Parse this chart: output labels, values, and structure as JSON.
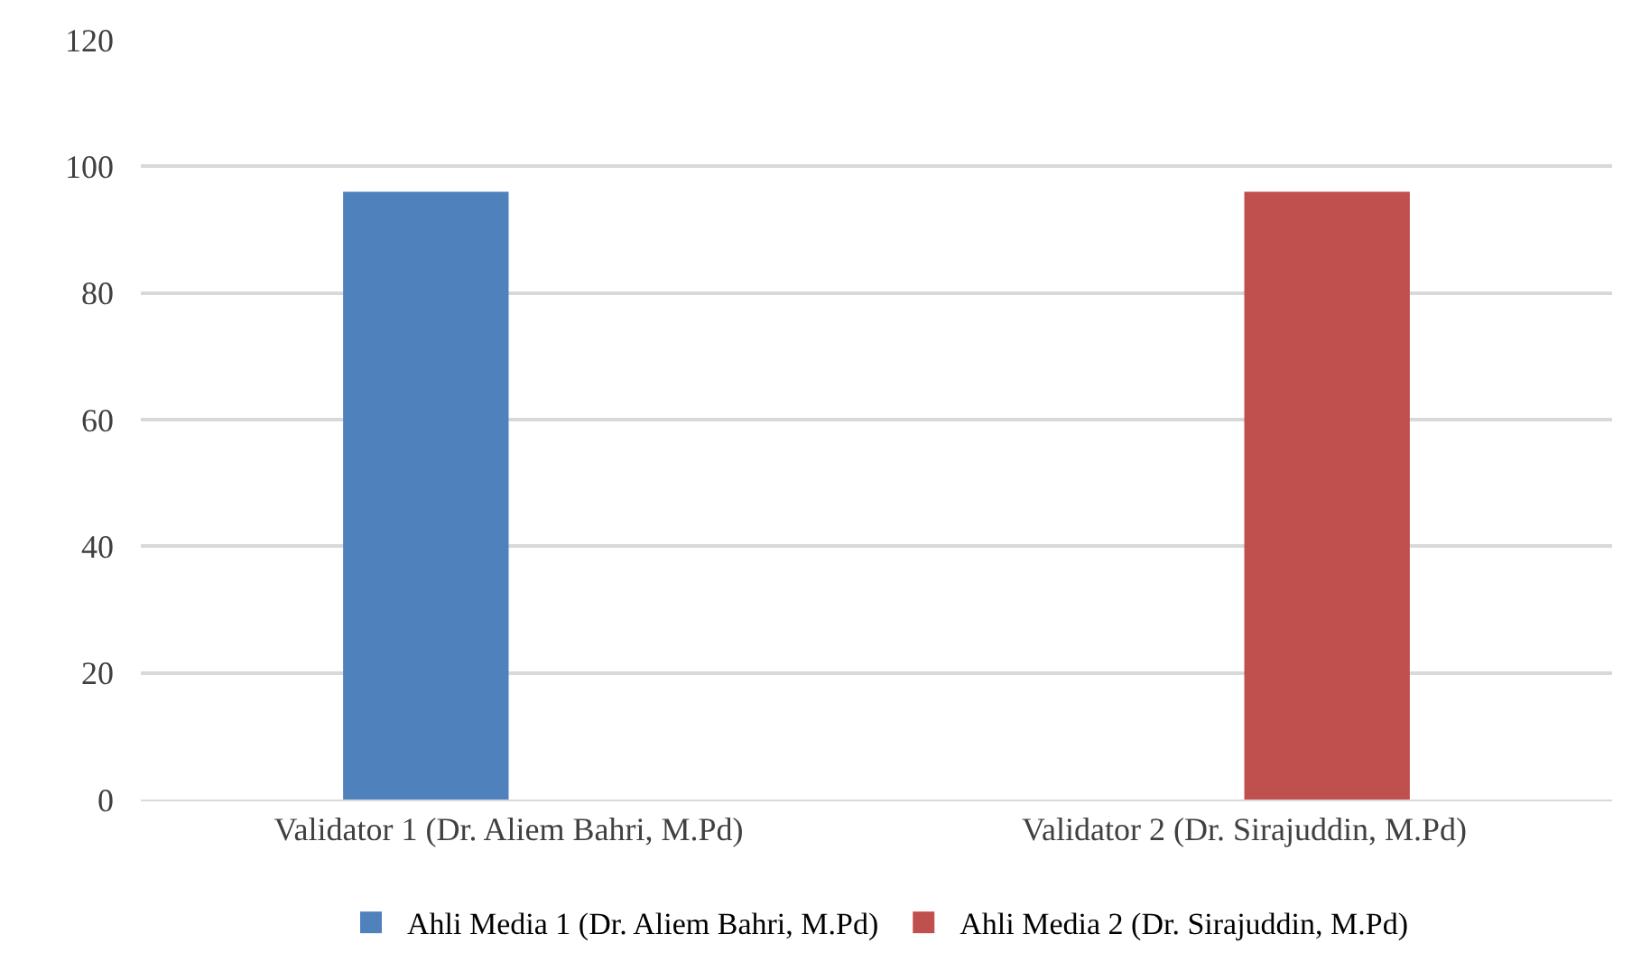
{
  "chart_data": {
    "type": "bar",
    "categories": [
      "Validator 1 (Dr. Aliem Bahri, M.Pd)",
      "Validator 2 (Dr. Sirajuddin, M.Pd)"
    ],
    "series": [
      {
        "name": "Ahli Media 1 (Dr. Aliem Bahri, M.Pd)",
        "color": "#4f81bd",
        "values": [
          96,
          null
        ]
      },
      {
        "name": "Ahli Media 2 (Dr. Sirajuddin, M.Pd)",
        "color": "#c0504d",
        "values": [
          null,
          96
        ]
      }
    ],
    "ylim": [
      0,
      120
    ],
    "yticks": [
      0,
      20,
      40,
      60,
      80,
      100,
      120
    ],
    "grid": "y",
    "legend": "bottom"
  }
}
